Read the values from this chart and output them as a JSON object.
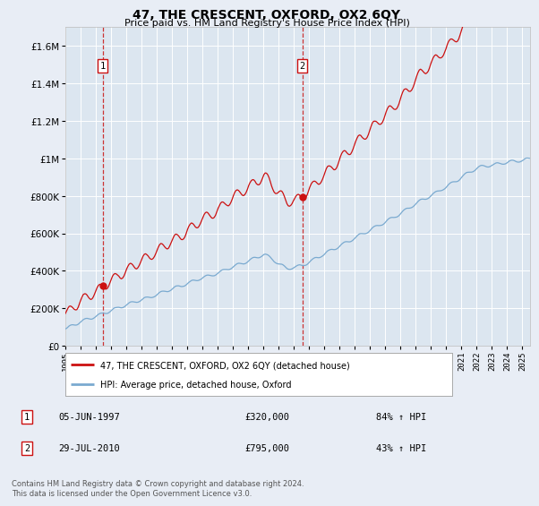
{
  "title": "47, THE CRESCENT, OXFORD, OX2 6QY",
  "subtitle": "Price paid vs. HM Land Registry's House Price Index (HPI)",
  "ylim": [
    0,
    1700000
  ],
  "yticks": [
    0,
    200000,
    400000,
    600000,
    800000,
    1000000,
    1200000,
    1400000,
    1600000
  ],
  "ytick_labels": [
    "£0",
    "£200K",
    "£400K",
    "£600K",
    "£800K",
    "£1M",
    "£1.2M",
    "£1.4M",
    "£1.6M"
  ],
  "sale1": {
    "date_num": 1997.44,
    "price": 320000,
    "label": "1",
    "text": "05-JUN-1997",
    "amount": "£320,000",
    "pct": "84% ↑ HPI"
  },
  "sale2": {
    "date_num": 2010.55,
    "price": 795000,
    "label": "2",
    "text": "29-JUL-2010",
    "amount": "£795,000",
    "pct": "43% ↑ HPI"
  },
  "hpi_line_color": "#7aaad0",
  "price_line_color": "#cc1111",
  "bg_color": "#e8edf5",
  "plot_bg_color": "#dce6f0",
  "grid_color": "#ffffff",
  "legend1_label": "47, THE CRESCENT, OXFORD, OX2 6QY (detached house)",
  "legend2_label": "HPI: Average price, detached house, Oxford",
  "footer": "Contains HM Land Registry data © Crown copyright and database right 2024.\nThis data is licensed under the Open Government Licence v3.0.",
  "xmin": 1995.0,
  "xmax": 2025.5
}
